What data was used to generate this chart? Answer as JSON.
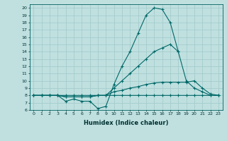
{
  "title": "",
  "xlabel": "Humidex (Indice chaleur)",
  "background_color": "#c0e0e0",
  "grid_color": "#a0c8c8",
  "line_color": "#006868",
  "x": [
    0,
    1,
    2,
    3,
    4,
    5,
    6,
    7,
    8,
    9,
    10,
    11,
    12,
    13,
    14,
    15,
    16,
    17,
    18,
    19,
    20,
    21,
    22,
    23
  ],
  "line1": [
    8,
    8,
    8,
    8,
    7.2,
    7.5,
    7.2,
    7.2,
    6.2,
    6.5,
    9.5,
    12,
    14,
    16.5,
    19,
    20,
    19.8,
    18,
    14,
    null,
    null,
    null,
    null,
    null
  ],
  "line2": [
    8,
    8,
    8,
    8,
    8,
    8,
    8,
    8,
    8,
    8,
    9,
    10,
    11,
    12,
    13,
    14,
    14.5,
    15,
    14,
    10,
    9,
    8.5,
    8,
    8
  ],
  "line3": [
    8,
    8,
    8,
    8,
    7.8,
    7.8,
    7.8,
    7.8,
    8,
    8,
    8.5,
    8.7,
    9,
    9.2,
    9.5,
    9.7,
    9.8,
    9.8,
    9.8,
    9.8,
    10,
    9,
    8.2,
    8
  ],
  "line4": [
    8,
    8,
    8,
    8,
    7.8,
    7.8,
    7.8,
    7.8,
    8,
    8,
    8,
    8,
    8,
    8,
    8,
    8,
    8,
    8,
    8,
    8,
    8,
    8,
    8,
    8
  ],
  "xlim": [
    -0.5,
    23.5
  ],
  "ylim": [
    6,
    20.5
  ],
  "yticks": [
    6,
    7,
    8,
    9,
    10,
    11,
    12,
    13,
    14,
    15,
    16,
    17,
    18,
    19,
    20
  ],
  "xticks": [
    0,
    1,
    2,
    3,
    4,
    5,
    6,
    7,
    8,
    9,
    10,
    11,
    12,
    13,
    14,
    15,
    16,
    17,
    18,
    19,
    20,
    21,
    22,
    23
  ]
}
